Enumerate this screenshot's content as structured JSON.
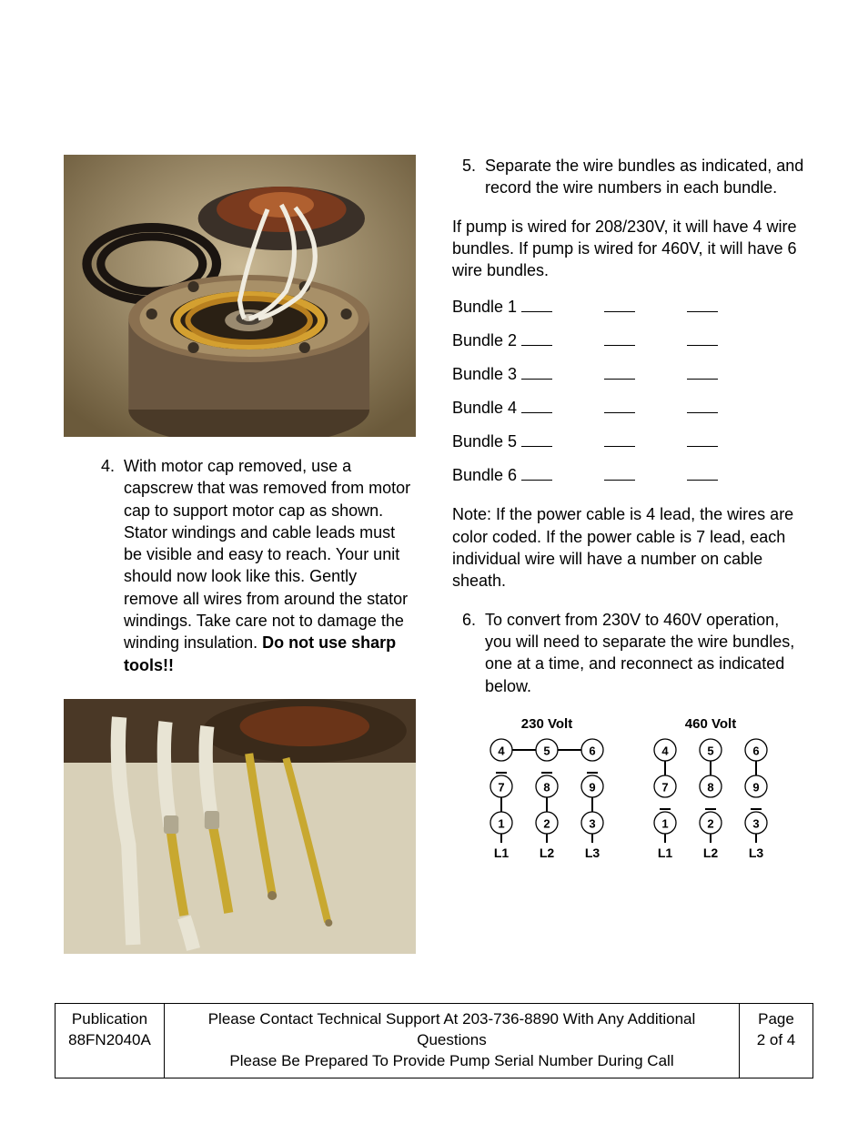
{
  "left": {
    "step4_num": "4.",
    "step4_text_a": "With motor cap removed, use a capscrew that was removed from motor cap to support motor cap as shown. Stator windings and cable leads must be visible and easy to reach. Your unit should now look like this. Gently remove all wires from around the stator windings. Take care not to damage the winding insulation. ",
    "step4_text_b": "Do not use sharp tools!!"
  },
  "right": {
    "step5_num": "5.",
    "step5_text": "Separate the wire bundles as indicated, and record the wire numbers in each bundle.",
    "para_bundles": "If pump is wired for 208/230V, it will have 4 wire bundles. If pump is wired for 460V, it will have 6 wire bundles.",
    "bundles": [
      {
        "label": "Bundle 1"
      },
      {
        "label": "Bundle 2"
      },
      {
        "label": "Bundle 3"
      },
      {
        "label": "Bundle 4"
      },
      {
        "label": "Bundle 5"
      },
      {
        "label": "Bundle 6"
      }
    ],
    "note": "Note: If the power cable is 4 lead, the wires are color coded. If the power cable is 7 lead, each individual wire will have a number on cable sheath.",
    "step6_num": "6.",
    "step6_text": "To convert from 230V to 460V operation, you will need to separate the wire bundles, one at a time, and reconnect as indicated below.",
    "diagram": {
      "title_230": "230 Volt",
      "title_460": "460 Volt",
      "rows": [
        [
          "4",
          "5",
          "6"
        ],
        [
          "7",
          "8",
          "9"
        ],
        [
          "1",
          "2",
          "3"
        ]
      ],
      "L": [
        "L1",
        "L2",
        "L3"
      ]
    }
  },
  "footer": {
    "pub_label": "Publication",
    "pub_num": "88FN2040A",
    "line1": "Please Contact Technical Support At 203-736-8890 With Any Additional Questions",
    "line2": "Please Be Prepared To Provide Pump Serial Number During Call",
    "page_label": "Page",
    "page_num": "2 of 4"
  }
}
